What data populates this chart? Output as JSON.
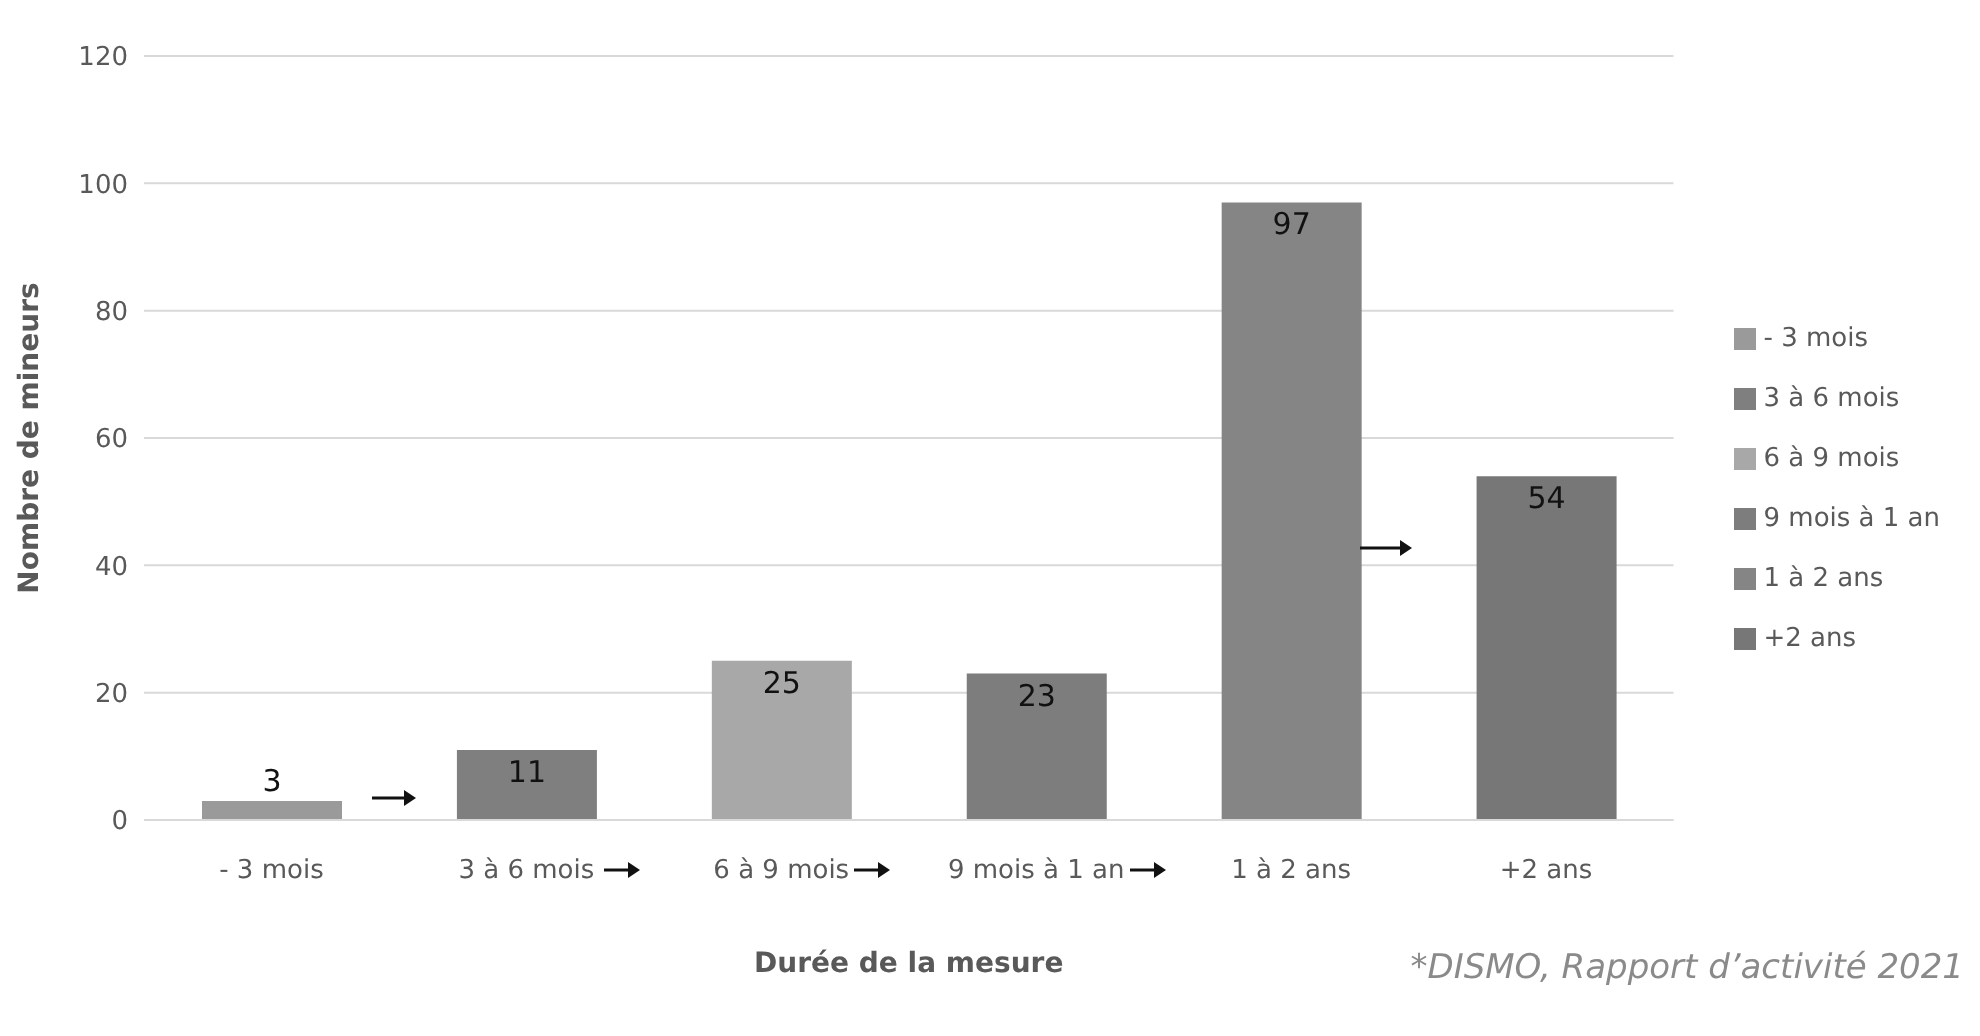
{
  "chart_data": {
    "type": "bar",
    "xlabel": "Durée de la mesure",
    "ylabel": "Nombre de mineurs",
    "categories": [
      "- 3 mois",
      "3 à 6 mois",
      "6 à 9 mois",
      "9 mois à 1 an",
      "1 à 2 ans",
      "+2 ans"
    ],
    "series": [
      {
        "name": "- 3 mois",
        "color": "#9a9a9a",
        "values": [
          3,
          null,
          null,
          null,
          null,
          null
        ]
      },
      {
        "name": "3 à 6 mois",
        "color": "#7f7f7f",
        "values": [
          null,
          11,
          null,
          null,
          null,
          null
        ]
      },
      {
        "name": "6 à 9 mois",
        "color": "#a8a8a8",
        "values": [
          null,
          null,
          25,
          null,
          null,
          null
        ]
      },
      {
        "name": "9 mois à 1 an",
        "color": "#7d7d7d",
        "values": [
          null,
          null,
          null,
          23,
          null,
          null
        ]
      },
      {
        "name": "1 à 2 ans",
        "color": "#858585",
        "values": [
          null,
          null,
          null,
          null,
          97,
          null
        ]
      },
      {
        "name": "+2 ans",
        "color": "#777777",
        "values": [
          null,
          null,
          null,
          null,
          null,
          54
        ]
      }
    ],
    "stacked": true,
    "ylim": [
      0,
      120
    ],
    "yticks": [
      0,
      20,
      40,
      60,
      80,
      100,
      120
    ],
    "grid": "y",
    "legend": "right",
    "data_labels": true,
    "annotations": [
      "*DISMO, Rapport d’activité 2021"
    ]
  }
}
